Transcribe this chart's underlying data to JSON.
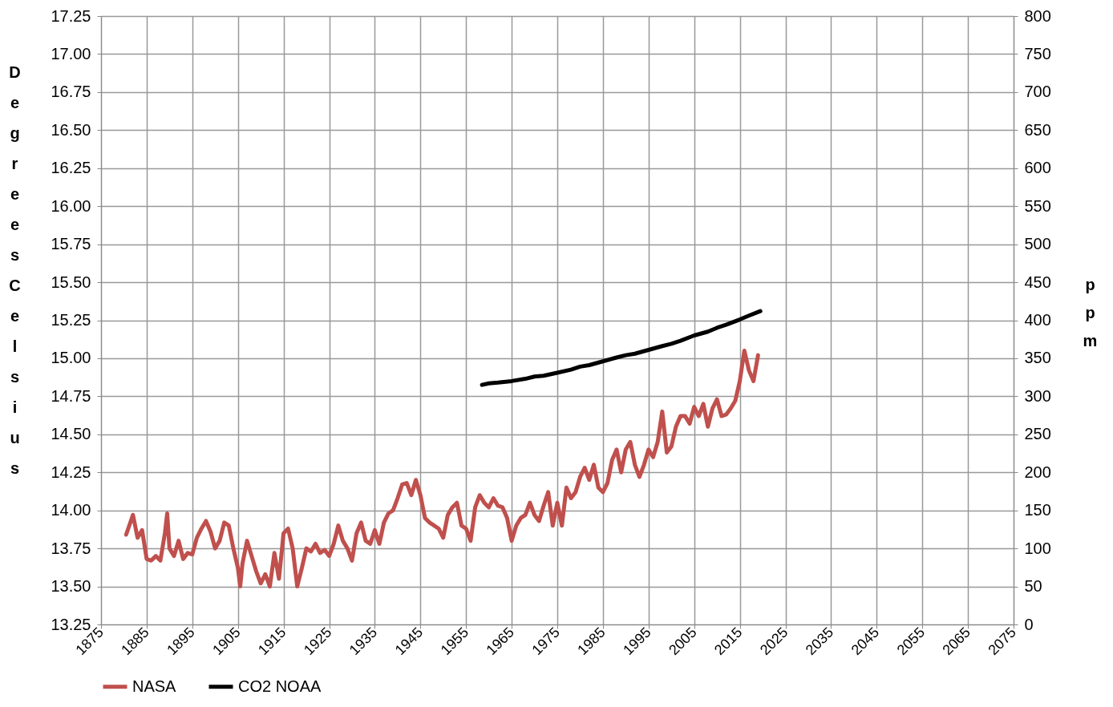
{
  "chart_data": {
    "type": "line",
    "ylabel": "Degrees Celsius",
    "y2label": "ppm",
    "xlim": [
      1875,
      2075
    ],
    "xticks": [
      1875,
      1885,
      1895,
      1905,
      1915,
      1925,
      1935,
      1945,
      1955,
      1965,
      1975,
      1985,
      1995,
      2005,
      2015,
      2025,
      2035,
      2045,
      2055,
      2065,
      2075
    ],
    "ylim": [
      13.25,
      17.25
    ],
    "yticks": [
      13.25,
      {
        "value": 13.5,
        "label": "13.50"
      },
      13.75,
      {
        "value": 14.0,
        "label": "14.00"
      },
      14.25,
      {
        "value": 14.5,
        "label": "14.50"
      },
      14.75,
      {
        "value": 15.0,
        "label": "15.00"
      },
      15.25,
      {
        "value": 15.5,
        "label": "15.50"
      },
      15.75,
      {
        "value": 16.0,
        "label": "16.00"
      },
      16.25,
      {
        "value": 16.5,
        "label": "16.50"
      },
      16.75,
      {
        "value": 17.0,
        "label": "17.00"
      },
      17.25
    ],
    "y2lim": [
      0,
      800
    ],
    "y2ticks": [
      0,
      50,
      100,
      150,
      200,
      250,
      300,
      350,
      400,
      450,
      500,
      550,
      600,
      650,
      700,
      750,
      800
    ],
    "grid": true,
    "legend": "bottom",
    "line_style": "solid",
    "series": [
      {
        "name": "NASA",
        "color": "#c0504d",
        "x": [
          1880.5,
          1882,
          1883,
          1884,
          1885,
          1886,
          1887,
          1888,
          1889,
          1889.5,
          1890,
          1891,
          1892,
          1893,
          1894,
          1895,
          1896,
          1897,
          1898,
          1899,
          1900,
          1901,
          1902,
          1903,
          1904,
          1905,
          1905.5,
          1906,
          1907,
          1908,
          1909,
          1910,
          1911,
          1912,
          1913,
          1914,
          1915,
          1916,
          1917,
          1918,
          1919,
          1920,
          1921,
          1922,
          1923,
          1924,
          1925,
          1926,
          1927,
          1928,
          1929,
          1930,
          1931,
          1932,
          1933,
          1934,
          1935,
          1936,
          1937,
          1938,
          1939,
          1940,
          1941,
          1942,
          1943,
          1944,
          1945,
          1946,
          1947,
          1948,
          1949,
          1950,
          1951,
          1952,
          1953,
          1954,
          1955,
          1956,
          1957,
          1958,
          1959,
          1960,
          1961,
          1962,
          1963,
          1964,
          1965,
          1966,
          1967,
          1968,
          1969,
          1970,
          1971,
          1972,
          1973,
          1974,
          1975,
          1976,
          1977,
          1978,
          1979,
          1980,
          1981,
          1982,
          1983,
          1984,
          1985,
          1986,
          1987,
          1988,
          1989,
          1990,
          1991,
          1992,
          1993,
          1994,
          1995,
          1996,
          1997,
          1998,
          1999,
          2000,
          2001,
          2002,
          2003,
          2004,
          2005,
          2006,
          2007,
          2008,
          2009,
          2010,
          2011,
          2012,
          2013,
          2014,
          2015,
          2016,
          2017,
          2018,
          2019
        ],
        "values": [
          13.84,
          13.97,
          13.82,
          13.87,
          13.68,
          13.67,
          13.7,
          13.67,
          13.85,
          13.98,
          13.75,
          13.7,
          13.8,
          13.68,
          13.72,
          13.71,
          13.82,
          13.88,
          13.93,
          13.86,
          13.75,
          13.8,
          13.92,
          13.9,
          13.75,
          13.62,
          13.5,
          13.65,
          13.8,
          13.7,
          13.6,
          13.52,
          13.58,
          13.5,
          13.72,
          13.55,
          13.85,
          13.88,
          13.75,
          13.5,
          13.62,
          13.75,
          13.73,
          13.78,
          13.72,
          13.74,
          13.7,
          13.78,
          13.9,
          13.8,
          13.75,
          13.67,
          13.85,
          13.92,
          13.8,
          13.78,
          13.87,
          13.78,
          13.92,
          13.98,
          14.0,
          14.08,
          14.17,
          14.18,
          14.1,
          14.2,
          14.1,
          13.95,
          13.92,
          13.9,
          13.88,
          13.82,
          13.97,
          14.02,
          14.05,
          13.9,
          13.88,
          13.8,
          14.02,
          14.1,
          14.05,
          14.02,
          14.08,
          14.03,
          14.02,
          13.95,
          13.8,
          13.9,
          13.95,
          13.97,
          14.05,
          13.97,
          13.93,
          14.03,
          14.12,
          13.9,
          14.05,
          13.9,
          14.15,
          14.08,
          14.12,
          14.22,
          14.28,
          14.2,
          14.3,
          14.15,
          14.12,
          14.18,
          14.33,
          14.4,
          14.25,
          14.4,
          14.45,
          14.3,
          14.22,
          14.3,
          14.4,
          14.35,
          14.45,
          14.65,
          14.38,
          14.42,
          14.55,
          14.62,
          14.62,
          14.57,
          14.68,
          14.62,
          14.7,
          14.55,
          14.67,
          14.73,
          14.62,
          14.63,
          14.67,
          14.72,
          14.85,
          15.05,
          14.92,
          14.85,
          15.02
        ]
      },
      {
        "name": "CO2 NOAA",
        "color": "#000000",
        "axis": "y2",
        "x": [
          1958.5,
          1960,
          1962,
          1965,
          1968,
          1970,
          1972,
          1975,
          1978,
          1980,
          1982,
          1985,
          1988,
          1990,
          1992,
          1995,
          1998,
          2000,
          2002,
          2005,
          2008,
          2010,
          2012,
          2015,
          2017,
          2019.5
        ],
        "values": [
          315,
          317,
          318,
          320,
          323,
          326,
          327,
          331,
          335,
          339,
          341,
          346,
          351,
          354,
          356,
          361,
          366,
          369,
          373,
          380,
          385,
          390,
          394,
          401,
          406,
          412
        ]
      }
    ]
  }
}
